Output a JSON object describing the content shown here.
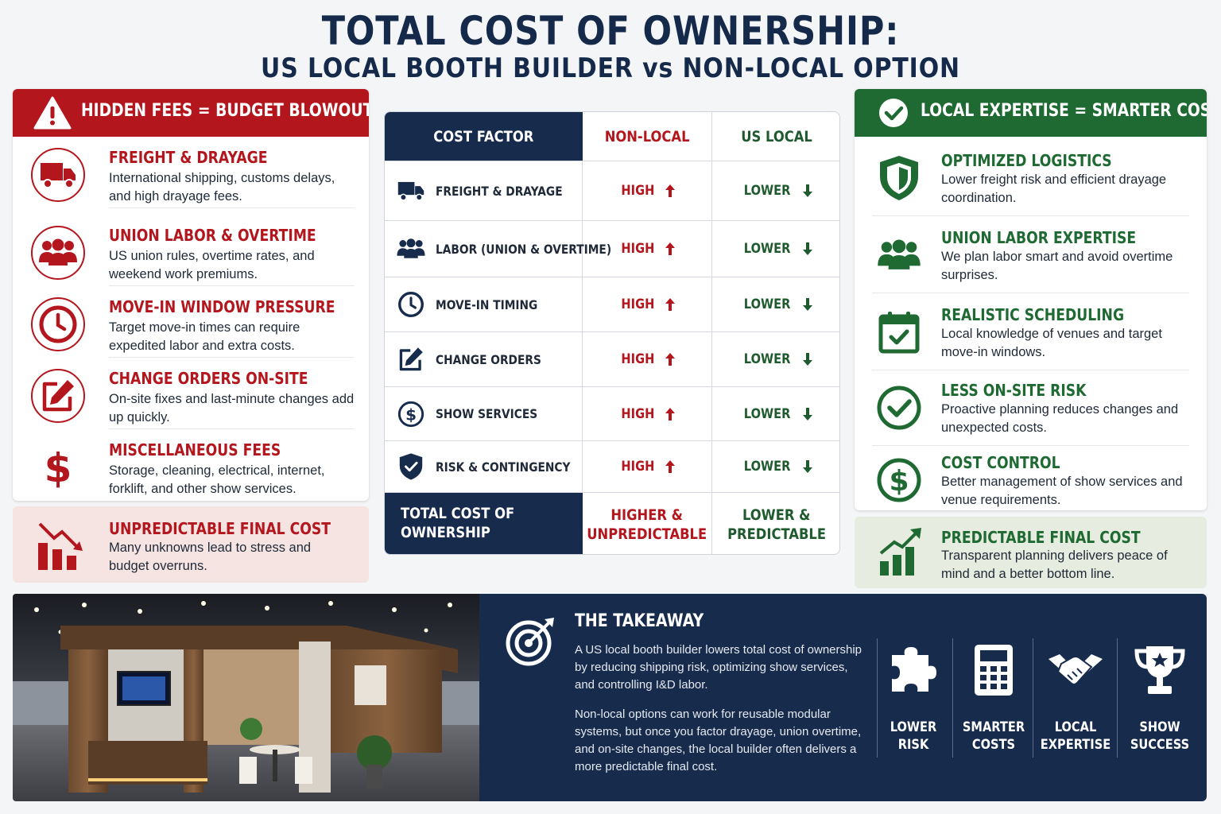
{
  "title": {
    "line1": "TOTAL COST OF OWNERSHIP:",
    "line2": "US LOCAL BOOTH BUILDER vs NON-LOCAL OPTION"
  },
  "colors": {
    "red": "#b3161d",
    "green": "#1e6a32",
    "navy": "#172b4d"
  },
  "hidden_fees": {
    "header": "HIDDEN FEES = BUDGET BLOWOUT",
    "header_icon": "warning-icon",
    "items": [
      {
        "icon": "truck-icon",
        "title": "FREIGHT & DRAYAGE",
        "desc": "International shipping, customs delays, and high drayage fees."
      },
      {
        "icon": "people-icon",
        "title": "UNION LABOR & OVERTIME",
        "desc": "US union rules, overtime rates, and weekend work premiums."
      },
      {
        "icon": "clock-icon",
        "title": "MOVE-IN WINDOW PRESSURE",
        "desc": "Target move-in times can require expedited labor and extra costs."
      },
      {
        "icon": "edit-icon",
        "title": "CHANGE ORDERS ON-SITE",
        "desc": "On-site fixes and last-minute changes add up quickly."
      },
      {
        "icon": "dollar-icon",
        "title": "MISCELLANEOUS FEES",
        "desc": "Storage, cleaning, electrical, internet, forklift, and other show services."
      }
    ],
    "bottom": {
      "icon": "chart-down-icon",
      "title": "UNPREDICTABLE FINAL COST",
      "desc": "Many unknowns lead to stress and budget overruns."
    }
  },
  "table": {
    "headers": [
      "COST FACTOR",
      "NON-LOCAL",
      "US LOCAL"
    ],
    "rows": [
      {
        "icon": "truck-icon",
        "label": "FREIGHT & DRAYAGE",
        "nonlocal": "HIGH",
        "local": "LOWER"
      },
      {
        "icon": "people-icon",
        "label": "LABOR (UNION & OVERTIME)",
        "nonlocal": "HIGH",
        "local": "LOWER"
      },
      {
        "icon": "clock-icon",
        "label": "MOVE-IN TIMING",
        "nonlocal": "HIGH",
        "local": "LOWER"
      },
      {
        "icon": "edit-icon",
        "label": "CHANGE ORDERS",
        "nonlocal": "HIGH",
        "local": "LOWER"
      },
      {
        "icon": "dollar-icon",
        "label": "SHOW SERVICES",
        "nonlocal": "HIGH",
        "local": "LOWER"
      },
      {
        "icon": "shield-check-icon",
        "label": "RISK & CONTINGENCY",
        "nonlocal": "HIGH",
        "local": "LOWER"
      }
    ],
    "total": {
      "label_line1": "TOTAL COST OF",
      "label_line2": "OWNERSHIP",
      "nonlocal_line1": "HIGHER &",
      "nonlocal_line2": "UNPREDICTABLE",
      "local_line1": "LOWER &",
      "local_line2": "PREDICTABLE"
    }
  },
  "local_expertise": {
    "header": "LOCAL EXPERTISE = SMARTER COST",
    "header_icon": "check-circle-icon",
    "items": [
      {
        "icon": "shield-icon",
        "title": "OPTIMIZED LOGISTICS",
        "desc": "Lower freight risk and efficient drayage coordination."
      },
      {
        "icon": "people-icon",
        "title": "UNION LABOR EXPERTISE",
        "desc": "We plan labor smart and avoid overtime surprises."
      },
      {
        "icon": "calendar-check-icon",
        "title": "REALISTIC SCHEDULING",
        "desc": "Local knowledge of venues and target move-in windows."
      },
      {
        "icon": "check-circle-icon",
        "title": "LESS ON-SITE RISK",
        "desc": "Proactive planning reduces changes and unexpected costs."
      },
      {
        "icon": "dollar-icon",
        "title": "COST CONTROL",
        "desc": "Better management of show services and venue requirements."
      }
    ],
    "bottom": {
      "icon": "chart-up-icon",
      "title": "PREDICTABLE FINAL COST",
      "desc": "Transparent planning delivers peace of mind and a better bottom line."
    }
  },
  "takeaway": {
    "icon": "target-icon",
    "title": "THE TAKEAWAY",
    "p1": "A US local booth builder lowers total cost of ownership by reducing shipping risk, optimizing show services, and controlling I&D labor.",
    "p2": "Non-local options can work for reusable modular systems, but once you factor drayage, union overtime, and on-site changes, the local builder often delivers a more predictable final cost.",
    "badges": [
      {
        "icon": "puzzle-icon",
        "label": "LOWER\nRISK"
      },
      {
        "icon": "calculator-icon",
        "label": "SMARTER\nCOSTS"
      },
      {
        "icon": "handshake-icon",
        "label": "LOCAL\nEXPERTISE"
      },
      {
        "icon": "trophy-icon",
        "label": "SHOW\nSUCCESS"
      }
    ]
  }
}
